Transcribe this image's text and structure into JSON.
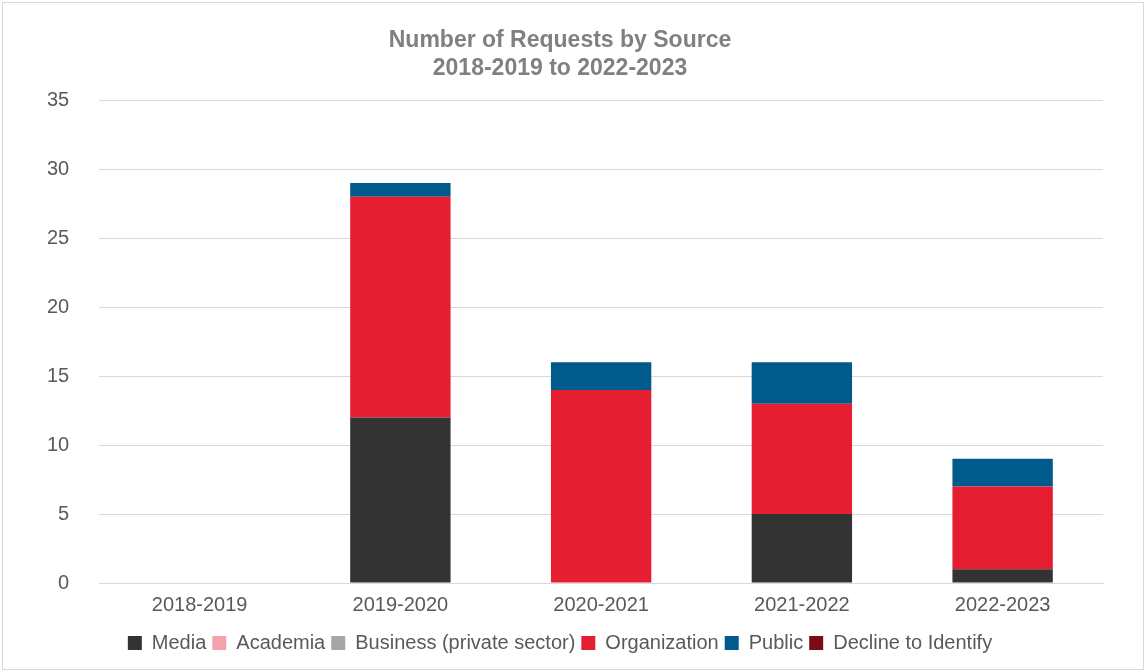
{
  "chart_data": {
    "type": "bar",
    "title": "Number of Requests by Source",
    "subtitle": "2018-2019 to 2022-2023",
    "categories": [
      "2018-2019",
      "2019-2020",
      "2020-2021",
      "2021-2022",
      "2022-2023"
    ],
    "series": [
      {
        "name": "Media",
        "color": "#333333",
        "values": [
          0,
          12,
          0,
          5,
          1
        ]
      },
      {
        "name": "Academia",
        "color": "#f4a3ad",
        "values": [
          0,
          0,
          0,
          0,
          0
        ]
      },
      {
        "name": "Business (private sector)",
        "color": "#a6a6a6",
        "values": [
          0,
          0,
          0,
          0,
          0
        ]
      },
      {
        "name": "Organization",
        "color": "#e61e32",
        "values": [
          0,
          16,
          14,
          8,
          6
        ]
      },
      {
        "name": "Public",
        "color": "#005a8c",
        "values": [
          0,
          1,
          2,
          3,
          2
        ]
      },
      {
        "name": "Decline to Identify",
        "color": "#7a0c18",
        "values": [
          0,
          0,
          0,
          0,
          0
        ]
      }
    ],
    "stacked": true,
    "ylim": [
      0,
      35
    ],
    "yticks": [
      0,
      5,
      10,
      15,
      20,
      25,
      30,
      35
    ],
    "grid": "y",
    "legend": "bottom"
  }
}
